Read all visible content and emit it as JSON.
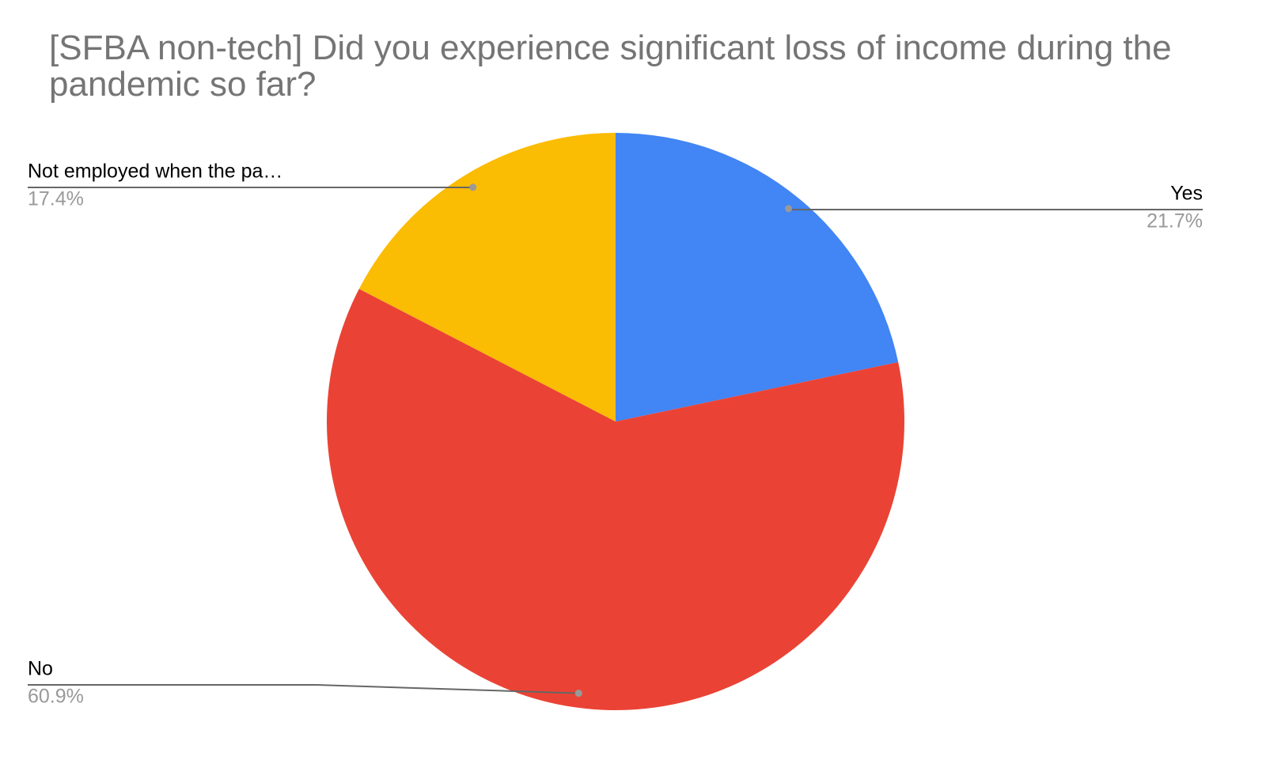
{
  "chart_data": {
    "type": "pie",
    "title": "[SFBA non-tech] Did you experience significant loss of income during the pandemic so far?",
    "categories": [
      "Yes",
      "No",
      "Not employed when the pa…"
    ],
    "values": [
      21.7,
      60.9,
      17.4
    ],
    "value_labels": [
      "21.7%",
      "60.9%",
      "17.4%"
    ],
    "colors": [
      "#4285f4",
      "#ea4335",
      "#fbbc04"
    ]
  }
}
